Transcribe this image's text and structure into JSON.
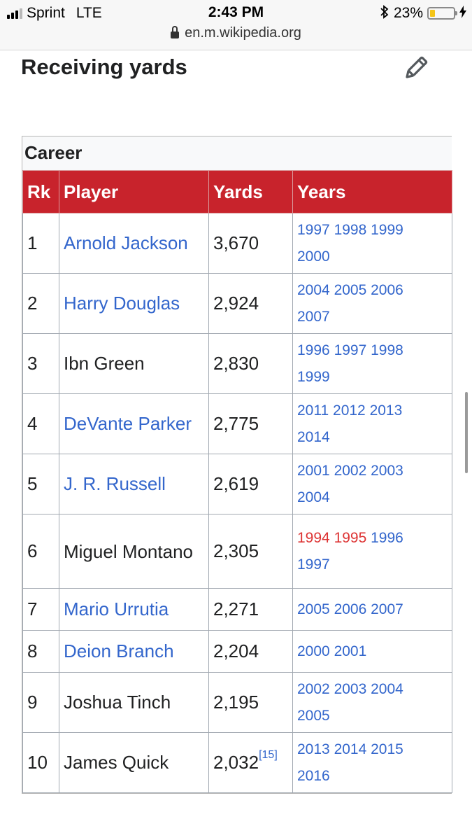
{
  "status_bar": {
    "carrier": "Sprint",
    "network": "LTE",
    "time": "2:43 PM",
    "battery_percent": "23%",
    "battery_level": 0.23,
    "icons": [
      "signal-icon",
      "bluetooth-icon",
      "battery-icon",
      "charging-bolt-icon"
    ]
  },
  "url_bar": {
    "url": "en.m.wikipedia.org",
    "icon": "lock-icon"
  },
  "section": {
    "title": "Receiving yards",
    "edit_icon": "pencil-icon"
  },
  "table": {
    "caption": "Career",
    "header_color": "#c8232c",
    "link_color": "#3366cc",
    "redlink_color": "#dd3333",
    "columns": [
      "Rk",
      "Player",
      "Yards",
      "Years"
    ],
    "rows": [
      {
        "rk": "1",
        "player": "Arnold Jackson",
        "player_link": true,
        "yards": "3,670",
        "ref": "",
        "years_line1": [
          [
            "1997",
            "link"
          ],
          [
            "1998",
            "link"
          ],
          [
            "1999",
            "link"
          ]
        ],
        "years_line2": [
          [
            "2000",
            "link"
          ]
        ]
      },
      {
        "rk": "2",
        "player": "Harry Douglas",
        "player_link": true,
        "yards": "2,924",
        "ref": "",
        "years_line1": [
          [
            "2004",
            "link"
          ],
          [
            "2005",
            "link"
          ],
          [
            "2006",
            "link"
          ]
        ],
        "years_line2": [
          [
            "2007",
            "link"
          ]
        ]
      },
      {
        "rk": "3",
        "player": "Ibn Green",
        "player_link": false,
        "yards": "2,830",
        "ref": "",
        "years_line1": [
          [
            "1996",
            "link"
          ],
          [
            "1997",
            "link"
          ],
          [
            "1998",
            "link"
          ]
        ],
        "years_line2": [
          [
            "1999",
            "link"
          ]
        ]
      },
      {
        "rk": "4",
        "player": "DeVante Parker",
        "player_link": true,
        "yards": "2,775",
        "ref": "",
        "years_line1": [
          [
            "2011",
            "link"
          ],
          [
            "2012",
            "link"
          ],
          [
            "2013",
            "link"
          ]
        ],
        "years_line2": [
          [
            "2014",
            "link"
          ]
        ]
      },
      {
        "rk": "5",
        "player": "J. R. Russell",
        "player_link": true,
        "yards": "2,619",
        "ref": "",
        "years_line1": [
          [
            "2001",
            "link"
          ],
          [
            "2002",
            "link"
          ],
          [
            "2003",
            "link"
          ]
        ],
        "years_line2": [
          [
            "2004",
            "link"
          ]
        ]
      },
      {
        "rk": "6",
        "player": "Miguel Montano",
        "player_link": false,
        "yards": "2,305",
        "ref": "",
        "years_line1": [
          [
            "1994",
            "redlink"
          ],
          [
            "1995",
            "redlink"
          ],
          [
            "1996",
            "link"
          ]
        ],
        "years_line2": [
          [
            "1997",
            "link"
          ]
        ]
      },
      {
        "rk": "7",
        "player": "Mario Urrutia",
        "player_link": true,
        "yards": "2,271",
        "ref": "",
        "years_line1": [
          [
            "2005",
            "link"
          ],
          [
            "2006",
            "link"
          ],
          [
            "2007",
            "link"
          ]
        ],
        "years_line2": []
      },
      {
        "rk": "8",
        "player": "Deion Branch",
        "player_link": true,
        "yards": "2,204",
        "ref": "",
        "years_line1": [
          [
            "2000",
            "link"
          ],
          [
            "2001",
            "link"
          ]
        ],
        "years_line2": []
      },
      {
        "rk": "9",
        "player": "Joshua Tinch",
        "player_link": false,
        "yards": "2,195",
        "ref": "",
        "years_line1": [
          [
            "2002",
            "link"
          ],
          [
            "2003",
            "link"
          ],
          [
            "2004",
            "link"
          ]
        ],
        "years_line2": [
          [
            "2005",
            "link"
          ]
        ]
      },
      {
        "rk": "10",
        "player": "James Quick",
        "player_link": false,
        "yards": "2,032",
        "ref": "[15]",
        "years_line1": [
          [
            "2013",
            "link"
          ],
          [
            "2014",
            "link"
          ],
          [
            "2015",
            "link"
          ]
        ],
        "years_line2": [
          [
            "2016",
            "link"
          ]
        ]
      }
    ]
  }
}
